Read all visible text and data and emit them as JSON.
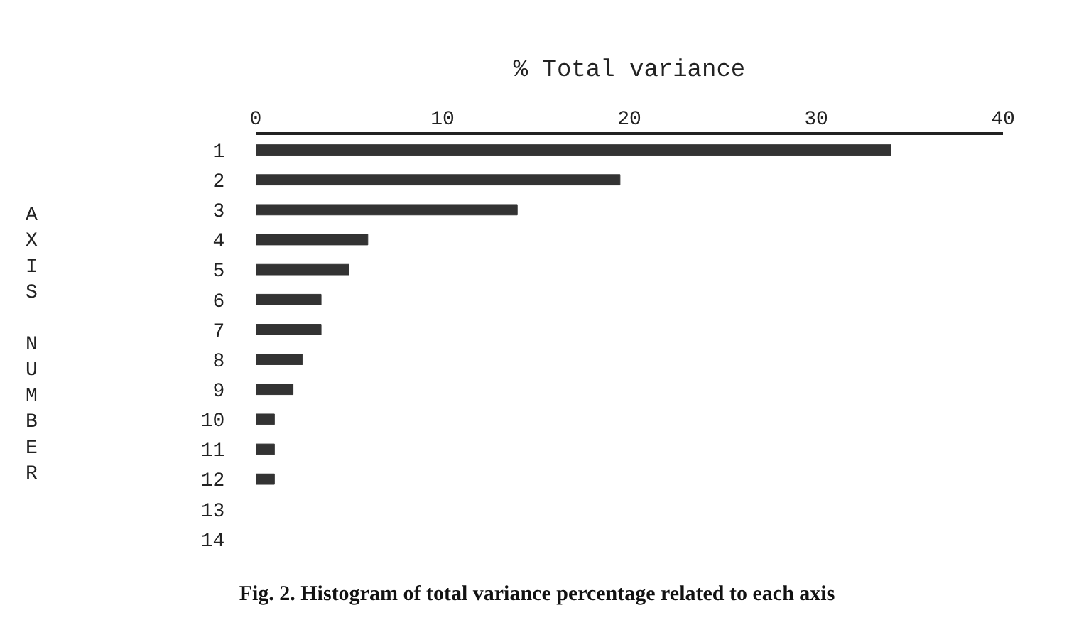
{
  "chart_data": {
    "type": "bar",
    "orientation": "horizontal",
    "title": "Fig. 2. Histogram of total variance percentage related to each axis",
    "xlabel": "% Total variance",
    "ylabel": "AXIS NUMBER",
    "categories": [
      "1",
      "2",
      "3",
      "4",
      "5",
      "6",
      "7",
      "8",
      "9",
      "10",
      "11",
      "12",
      "13",
      "14"
    ],
    "values": [
      34,
      19.5,
      14,
      6,
      5,
      3.5,
      3.5,
      2.5,
      2,
      1,
      1,
      1,
      0,
      0
    ],
    "color": "#333333",
    "xlim": [
      0,
      40
    ],
    "xticks": [
      0,
      10,
      20,
      30,
      40
    ]
  }
}
